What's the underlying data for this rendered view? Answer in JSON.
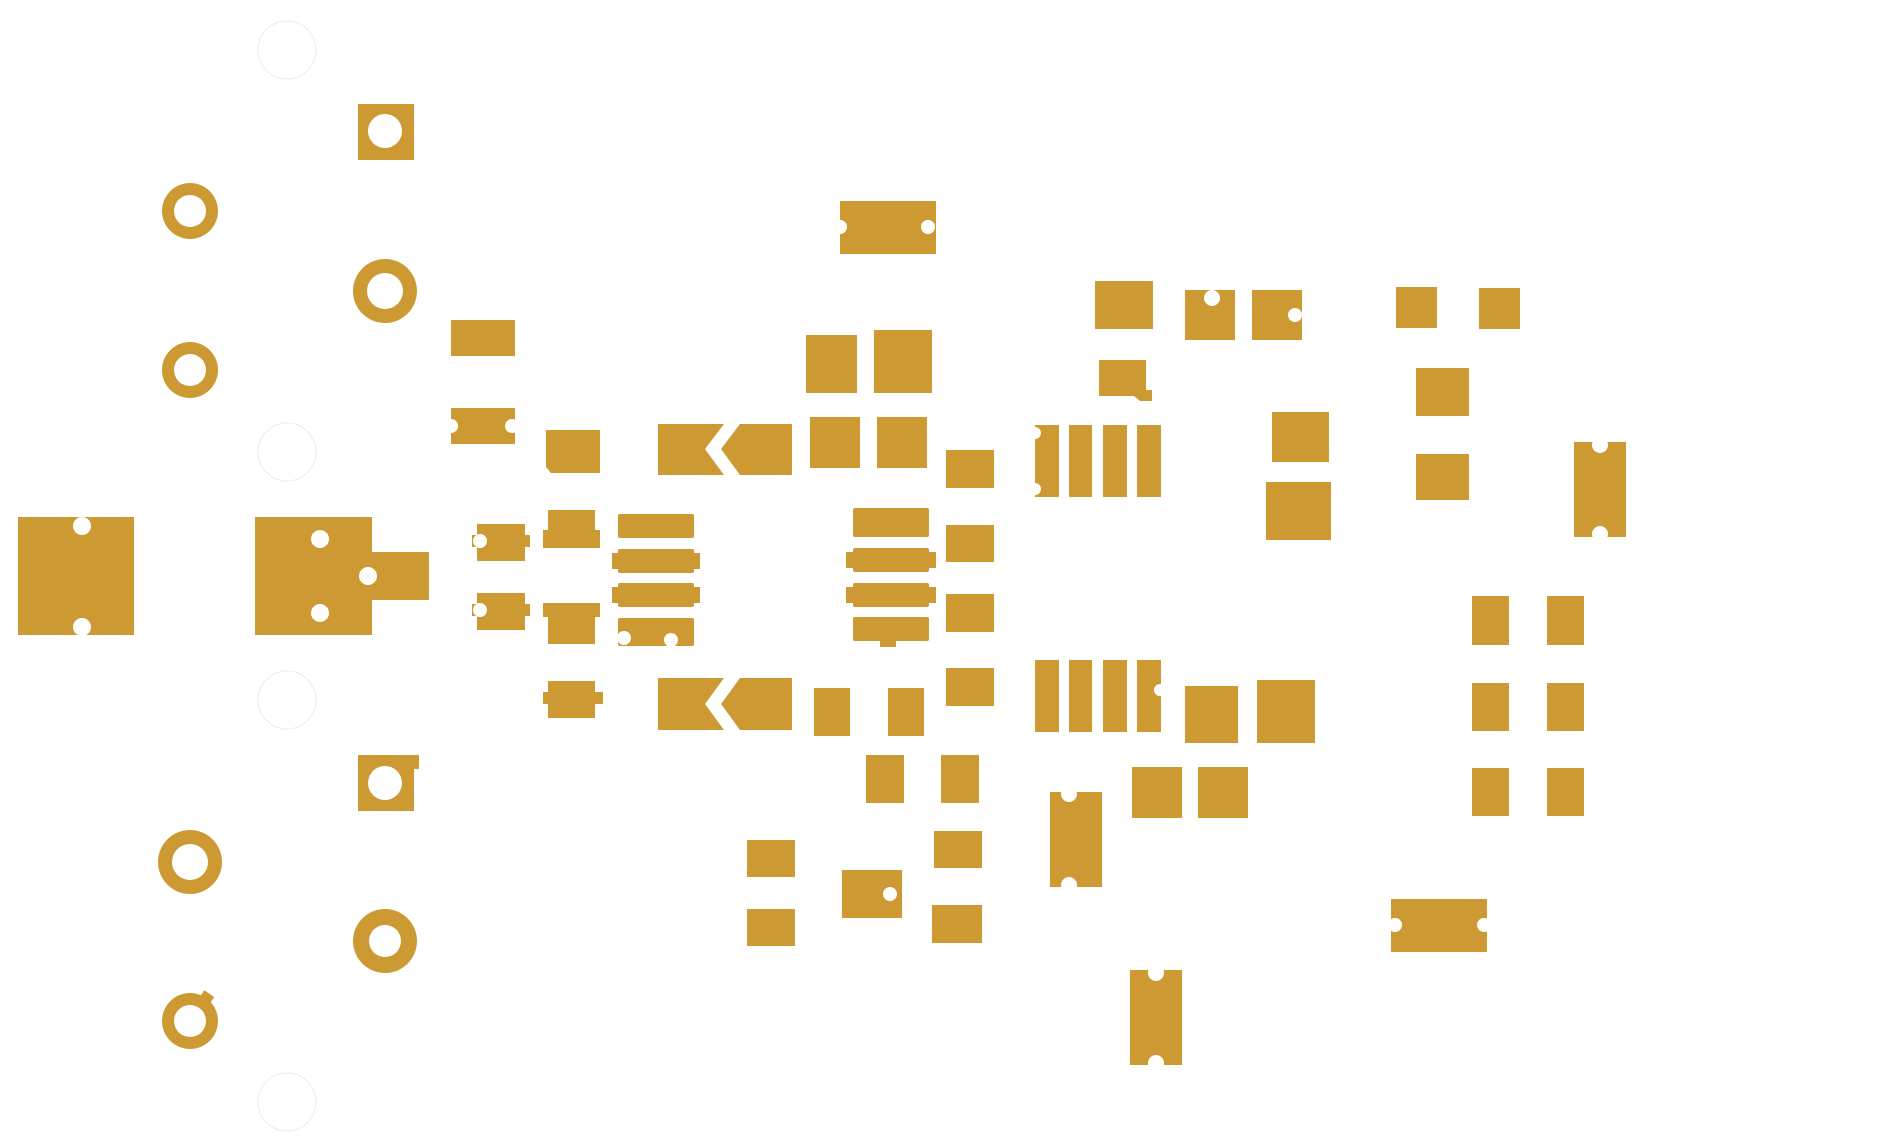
{
  "diagram": {
    "kind": "pcb-copper-layer",
    "colors": {
      "copper": "#CC9933",
      "background": "#FFFFFF",
      "hole": "#FFFFFF",
      "npth_outline": "#F3ECDA"
    },
    "components": [
      {
        "name": "mounting-holes"
      },
      {
        "name": "through-hole-pads"
      },
      {
        "name": "smd-pads"
      },
      {
        "name": "connector-pads"
      },
      {
        "name": "ic-footprints"
      }
    ]
  }
}
